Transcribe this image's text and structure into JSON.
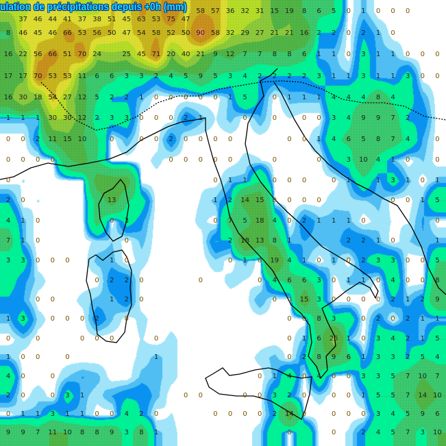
{
  "title": "ulation de précipitations depuis +0h (mm)",
  "colors": {
    "scale": [
      {
        "max": 0.3,
        "color": "#ffffff"
      },
      {
        "max": 0.8,
        "color": "#a0e4fa"
      },
      {
        "max": 1.3,
        "color": "#50bef2"
      },
      {
        "max": 2.2,
        "color": "#0a92f0"
      },
      {
        "max": 5,
        "color": "#00f096"
      },
      {
        "max": 10,
        "color": "#3cc86e"
      },
      {
        "max": 20,
        "color": "#50b446"
      },
      {
        "max": 30,
        "color": "#8cc83c"
      },
      {
        "max": 40,
        "color": "#b4dc28"
      },
      {
        "max": 50,
        "color": "#dcdc32"
      },
      {
        "max": 60,
        "color": "#c8b41e"
      },
      {
        "max": 80,
        "color": "#c8901e"
      },
      {
        "max": 1000,
        "color": "#f08c50"
      }
    ],
    "coastline": "#000000",
    "title_fill": "#19e1ff",
    "title_outline": "#0a2a8c"
  },
  "grid": [
    [
      "",
      "37",
      "46",
      "44",
      "41",
      "37",
      "38",
      "51",
      "45",
      "63",
      "53",
      "75",
      "47",
      "58",
      "57",
      "36",
      "32",
      "31",
      "15",
      "19",
      "8",
      "6",
      "5",
      "0",
      "1",
      "0",
      "0",
      "0",
      "",
      ""
    ],
    [
      "8",
      "46",
      "45",
      "46",
      "66",
      "53",
      "56",
      "50",
      "47",
      "54",
      "58",
      "52",
      "50",
      "90",
      "58",
      "32",
      "29",
      "27",
      "21",
      "21",
      "16",
      "2",
      "2",
      "0",
      "2",
      "1",
      "0",
      "",
      "",
      ""
    ],
    [
      "16",
      "22",
      "56",
      "66",
      "51",
      "70",
      "24",
      "",
      "25",
      "45",
      "71",
      "20",
      "40",
      "21",
      "9",
      "12",
      "7",
      "7",
      "8",
      "8",
      "6",
      "1",
      "1",
      "0",
      "3",
      "1",
      "1",
      "0",
      "0",
      "0"
    ],
    [
      "17",
      "17",
      "70",
      "53",
      "53",
      "11",
      "6",
      "6",
      "3",
      "3",
      "2",
      "4",
      "5",
      "9",
      "5",
      "3",
      "4",
      "2",
      "2",
      "2",
      "2",
      "3",
      "1",
      "1",
      "3",
      "1",
      "1",
      "3",
      "0",
      "0"
    ],
    [
      "16",
      "30",
      "18",
      "54",
      "27",
      "12",
      "5",
      "2",
      "2",
      "1",
      "0",
      "0",
      "0",
      "0",
      "0",
      "1",
      "5",
      "",
      "0",
      "1",
      "1",
      "1",
      "4",
      "4",
      "4",
      "8",
      "4",
      "",
      "",
      ""
    ],
    [
      "1",
      "1",
      "1",
      "30",
      "30",
      "12",
      "2",
      "3",
      "3",
      "0",
      "0",
      "0",
      "2",
      "1",
      "",
      "",
      "0",
      "",
      "0",
      "",
      "0",
      "0",
      "3",
      "4",
      "9",
      "9",
      "7",
      "2",
      "",
      ""
    ],
    [
      "0",
      "0",
      "2",
      "11",
      "15",
      "10",
      "",
      "0",
      "",
      "0",
      "0",
      "2",
      "0",
      "0",
      "0",
      "0",
      "",
      "",
      "",
      "0",
      "0",
      "1",
      "4",
      "6",
      "5",
      "8",
      "7",
      "4",
      "",
      "0"
    ],
    [
      "0",
      "0",
      "0",
      "0",
      "",
      "",
      "",
      "",
      "",
      "",
      "",
      "0",
      "0",
      "0",
      "0",
      "0",
      "",
      "",
      "0",
      "",
      "",
      "0",
      "",
      "3",
      "10",
      "4",
      "1",
      "0",
      "",
      "0"
    ],
    [
      "0",
      "",
      "",
      "",
      "",
      "",
      "",
      "",
      "",
      "",
      "",
      "",
      "",
      "",
      "0",
      "1",
      "1",
      "",
      "0",
      "0",
      "0",
      "",
      "0",
      "1",
      "",
      "1",
      "3",
      "1",
      "0",
      "1"
    ],
    [
      "2",
      "0",
      "",
      "",
      "",
      "",
      "",
      "13",
      "",
      "",
      "",
      "",
      "",
      "",
      "1",
      "2",
      "14",
      "15",
      "0",
      "0",
      "0",
      "0",
      "",
      "",
      "",
      "",
      "0",
      "0",
      "1",
      "5"
    ],
    [
      "4",
      "1",
      "0",
      "",
      "",
      "",
      "",
      "0",
      "3",
      "",
      "",
      "",
      "",
      "",
      "0",
      "7",
      "5",
      "18",
      "4",
      "0",
      "2",
      "1",
      "1",
      "1",
      "0",
      "",
      "",
      "",
      "",
      "0"
    ],
    [
      "7",
      "1",
      "0",
      "",
      "",
      "",
      "",
      "",
      "0",
      "",
      "",
      "",
      "",
      "",
      "",
      "2",
      "18",
      "13",
      "8",
      "1",
      "",
      "",
      "",
      "2",
      "2",
      "1",
      "0",
      "",
      "",
      "1"
    ],
    [
      "3",
      "3",
      "0",
      "0",
      "0",
      "",
      "",
      "1",
      "0",
      "",
      "",
      "",
      "",
      "",
      "",
      "0",
      "1",
      "0",
      "19",
      "4",
      "1",
      "0",
      "1",
      "0",
      "2",
      "3",
      "3",
      "0",
      "0",
      "5"
    ],
    [
      "",
      "",
      "",
      "",
      "",
      "",
      "0",
      "2",
      "2",
      "0",
      "",
      "",
      "",
      "0",
      "",
      "",
      "",
      "0",
      "4",
      "6",
      "6",
      "3",
      "0",
      "1",
      "1",
      "0",
      "4",
      "0",
      "0",
      "8"
    ],
    [
      "",
      "",
      "0",
      "0",
      "",
      "",
      "",
      "1",
      "2",
      "0",
      "",
      "",
      "",
      "",
      "",
      "",
      "",
      "",
      "0",
      "0",
      "15",
      "3",
      "0",
      "0",
      "0",
      "0",
      "2",
      "1",
      "2",
      "9"
    ],
    [
      "1",
      "3",
      "",
      "0",
      "0",
      "0",
      "2",
      "",
      "0",
      "",
      "",
      "",
      "",
      "",
      "",
      "",
      "",
      "",
      "",
      "0",
      "0",
      "8",
      "3",
      "",
      "0",
      "2",
      "0",
      "2",
      "1",
      "1"
    ],
    [
      "0",
      "",
      "0",
      "",
      "",
      "0",
      "0",
      "0",
      "",
      "",
      "0",
      "",
      "",
      "",
      "",
      "",
      "",
      "",
      "",
      "0",
      "1",
      "6",
      "25",
      "1",
      "0",
      "3",
      "4",
      "2",
      "1",
      "5"
    ],
    [
      "1",
      "0",
      "0",
      "",
      "0",
      "",
      "",
      "",
      "",
      "",
      "1",
      "",
      "",
      "",
      "",
      "",
      "",
      "",
      "",
      "0",
      "2",
      "8",
      "9",
      "6",
      "1",
      "3",
      "3",
      "2",
      "5",
      "4"
    ],
    [
      "4",
      "0",
      "",
      "0",
      "",
      "",
      "",
      "",
      "",
      "",
      "",
      "",
      "",
      "",
      "",
      "",
      "",
      "0",
      "1",
      "4",
      "0",
      "4",
      "0",
      "0",
      "3",
      "3",
      "5",
      "7",
      "10",
      "7"
    ],
    [
      "2",
      "0",
      "",
      "0",
      "3",
      "1",
      "",
      "",
      "",
      "",
      "",
      "",
      "0",
      "0",
      "",
      "",
      "0",
      "0",
      "3",
      "2",
      "0",
      "",
      "0",
      "0",
      "1",
      "5",
      "5",
      "7",
      "14",
      "10"
    ],
    [
      "0",
      "1",
      "1",
      "3",
      "1",
      "1",
      "0",
      "0",
      "4",
      "2",
      "0",
      "",
      "",
      "",
      "0",
      "0",
      "0",
      "0",
      "2",
      "14",
      "0",
      "",
      "0",
      "0",
      "0",
      "3",
      "4",
      "5",
      "9",
      "6"
    ],
    [
      "9",
      "9",
      "7",
      "11",
      "10",
      "8",
      "8",
      "9",
      "3",
      "8",
      "1",
      "",
      "",
      "",
      "",
      "",
      "",
      "",
      "",
      "0",
      "",
      "",
      "0",
      "",
      "2",
      "4",
      "5",
      "7",
      "3",
      "10"
    ]
  ]
}
